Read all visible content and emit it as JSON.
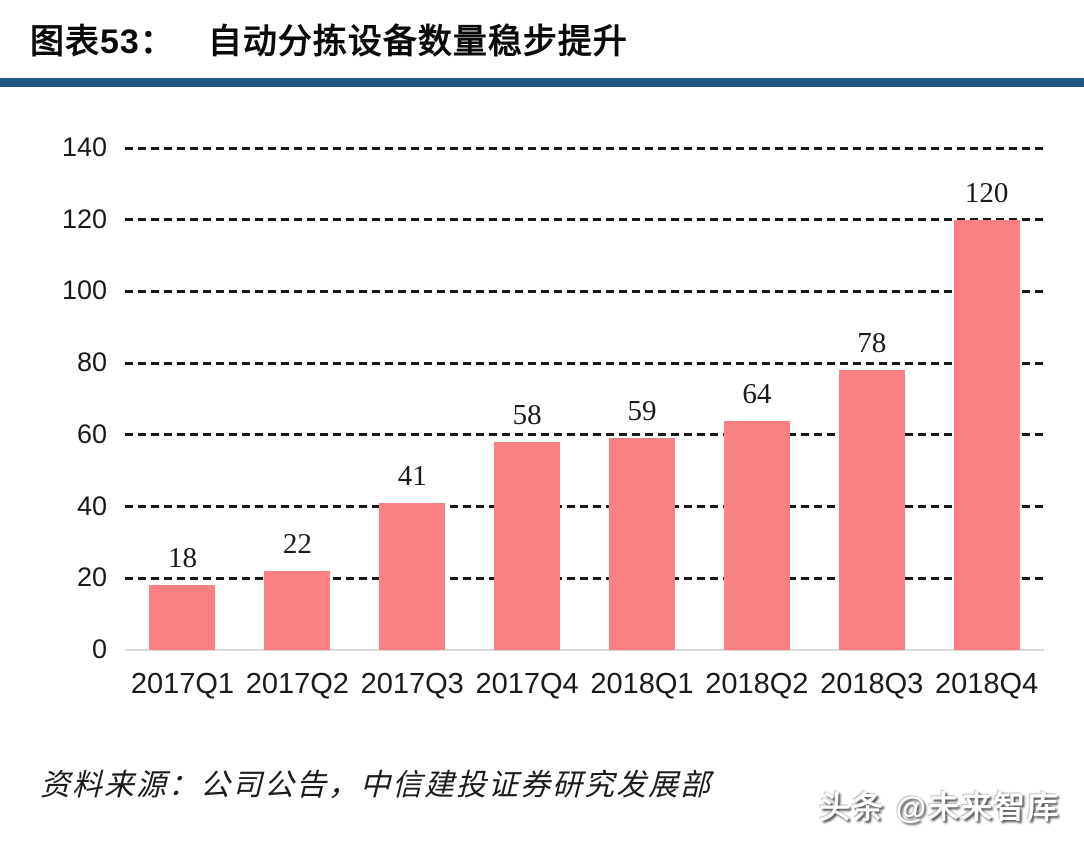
{
  "header": {
    "figure_label": "图表53：",
    "title": "自动分拣设备数量稳步提升"
  },
  "chart_data": {
    "type": "bar",
    "categories": [
      "2017Q1",
      "2017Q2",
      "2017Q3",
      "2017Q4",
      "2018Q1",
      "2018Q2",
      "2018Q3",
      "2018Q4"
    ],
    "values": [
      18,
      22,
      41,
      58,
      59,
      64,
      78,
      120
    ],
    "title": "自动分拣设备数量稳步提升",
    "xlabel": "",
    "ylabel": "",
    "ylim": [
      0,
      140
    ],
    "yticks": [
      0,
      20,
      40,
      60,
      80,
      100,
      120,
      140
    ],
    "grid": "horizontal-dashed",
    "legend": "none",
    "value_labels": true,
    "bar_color": "#FA8084"
  },
  "footer": {
    "source": "资料来源：公司公告，中信建投证券研究发展部",
    "watermark": "头条 @未来智库"
  },
  "colors": {
    "bar": "#FA8084",
    "divider_blue": "#1E5780",
    "gridline": "#1a1a1a",
    "baseline": "#d9d9d9"
  }
}
